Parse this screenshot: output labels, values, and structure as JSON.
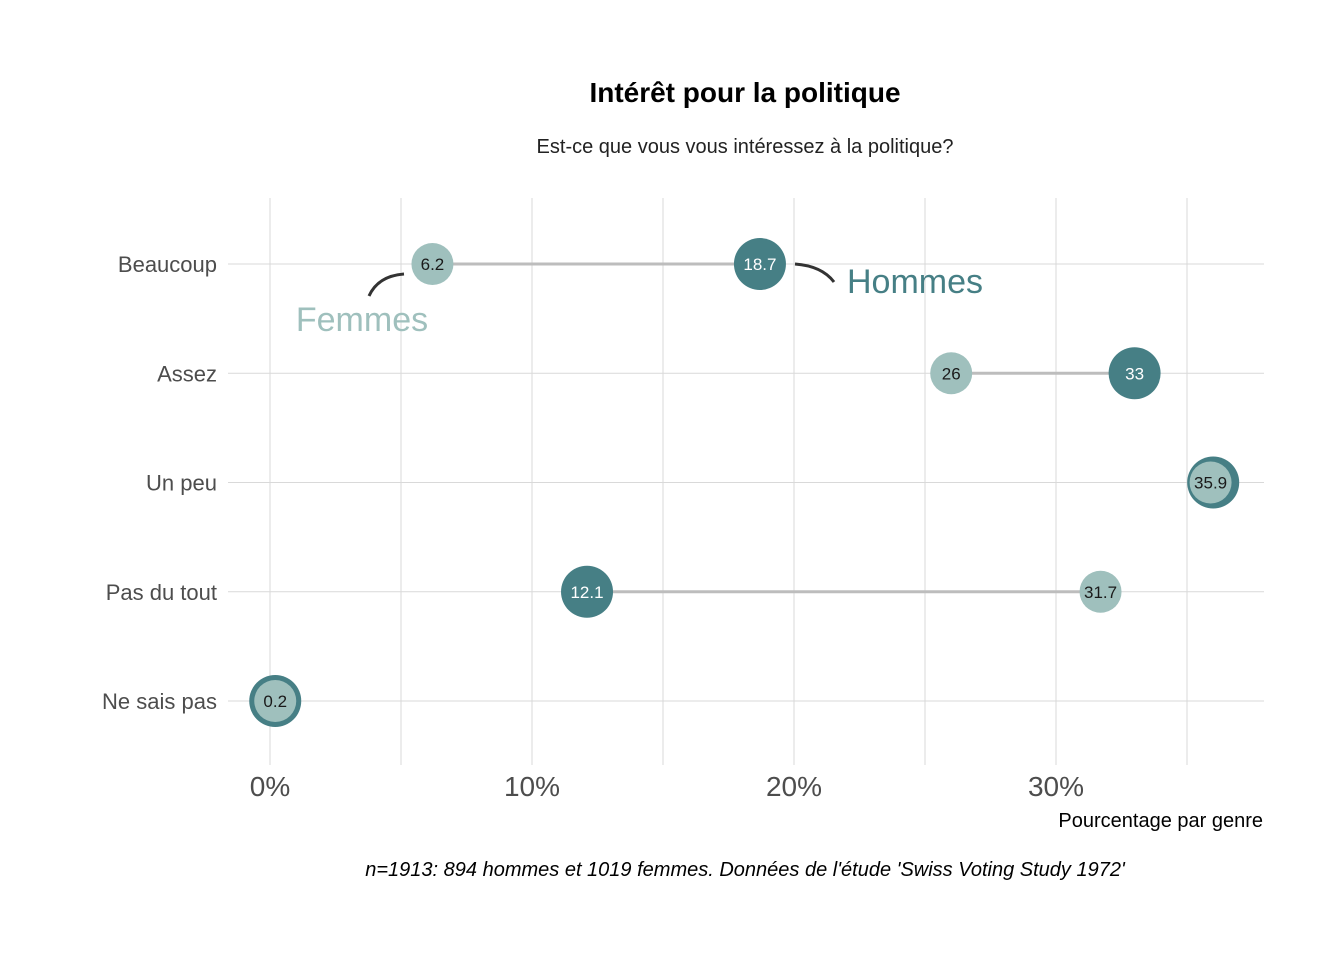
{
  "chart_data": {
    "type": "dumbbell",
    "title": "Intérêt pour la politique",
    "subtitle": "Est-ce que vous vous intéressez à la politique?",
    "xlabel": "Pourcentage par genre",
    "caption": "n=1913: 894 hommes et 1019 femmes. Données de l'étude 'Swiss Voting Study 1972'",
    "categories": [
      "Beaucoup",
      "Assez",
      "Un peu",
      "Pas du tout",
      "Ne sais pas"
    ],
    "series": [
      {
        "name": "Femmes",
        "color": "#9fc0bd",
        "label_color": "#1a1a1a",
        "values": [
          6.2,
          26,
          35.9,
          31.7,
          0.2
        ]
      },
      {
        "name": "Hommes",
        "color": "#467f85",
        "label_color": "#ffffff",
        "values": [
          18.7,
          33,
          36.0,
          12.1,
          0.2
        ]
      }
    ],
    "value_labels": [
      {
        "category": "Beaucoup",
        "femmes": "6.2",
        "hommes": "18.7"
      },
      {
        "category": "Assez",
        "femmes": "26",
        "hommes": "33"
      },
      {
        "category": "Un peu",
        "femmes": "35.9",
        "hommes": ""
      },
      {
        "category": "Pas du tout",
        "femmes": "31.7",
        "hommes": "12.1"
      },
      {
        "category": "Ne sais pas",
        "femmes": "0.2",
        "hommes": ""
      }
    ],
    "x_ticks": [
      0,
      10,
      20,
      30
    ],
    "x_tick_labels": [
      "0%",
      "10%",
      "20%",
      "30%"
    ],
    "xlim": [
      -1,
      37.8
    ],
    "grid": true,
    "connector_color": "#bdbdbd"
  }
}
